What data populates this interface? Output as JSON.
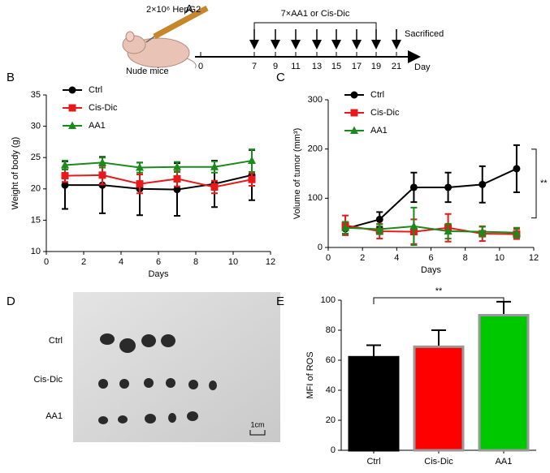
{
  "schematic": {
    "panel_label": "A",
    "cells": "2×10⁶ HepG2",
    "mice": "Nude mice",
    "treatment": "7×AA1 or Cis-Dic",
    "endpoint": "Sacrificed",
    "axis_label": "Day",
    "day_labels": [
      "0",
      "7",
      "9",
      "11",
      "13",
      "15",
      "17",
      "19",
      "21"
    ]
  },
  "photo": {
    "panel_label": "D",
    "rows": [
      "Ctrl",
      "Cis-Dic",
      "AA1"
    ],
    "scale": "1cm"
  },
  "chart_data": [
    {
      "type": "line",
      "panel_label": "B",
      "x_label": "Days",
      "y_label": "Weight of body (g)",
      "legend": "upper left",
      "x": [
        1,
        3,
        5,
        7,
        9,
        11
      ],
      "xlim": [
        0,
        12
      ],
      "xticks": [
        0,
        2,
        4,
        6,
        8,
        10,
        12
      ],
      "ylim": [
        10,
        35
      ],
      "yticks": [
        10,
        15,
        20,
        25,
        30,
        35
      ],
      "series": [
        {
          "name": "Ctrl",
          "color": "#000000",
          "marker": "circle",
          "values": [
            20.6,
            20.6,
            20.0,
            19.9,
            20.8,
            22.2
          ],
          "errors": [
            3.8,
            4.5,
            4.2,
            4.2,
            3.7,
            4.0
          ]
        },
        {
          "name": "Cis-Dic",
          "color": "#e8191b",
          "marker": "square",
          "values": [
            22.1,
            22.2,
            20.8,
            21.6,
            20.3,
            21.5
          ],
          "errors": [
            1.0,
            1.5,
            1.5,
            1.2,
            1.0,
            1.0
          ]
        },
        {
          "name": "AA1",
          "color": "#1a8a1a",
          "marker": "triangle",
          "values": [
            23.8,
            24.2,
            23.4,
            23.5,
            23.5,
            24.5
          ],
          "errors": [
            0.7,
            0.8,
            0.8,
            0.8,
            0.9,
            1.8
          ]
        }
      ]
    },
    {
      "type": "line",
      "panel_label": "C",
      "x_label": "Days",
      "y_label": "Volume of tumor (mm³)",
      "legend": "upper left",
      "annotation": "**",
      "x": [
        1,
        3,
        5,
        7,
        9,
        11
      ],
      "xlim": [
        0,
        12
      ],
      "xticks": [
        0,
        2,
        4,
        6,
        8,
        10,
        12
      ],
      "ylim": [
        0,
        300
      ],
      "yticks": [
        0,
        100,
        200,
        300
      ],
      "series": [
        {
          "name": "Ctrl",
          "color": "#000000",
          "marker": "circle",
          "values": [
            38,
            57,
            122,
            122,
            128,
            160
          ],
          "errors": [
            10,
            15,
            30,
            30,
            37,
            48
          ]
        },
        {
          "name": "Cis-Dic",
          "color": "#e8191b",
          "marker": "square",
          "values": [
            45,
            33,
            32,
            40,
            28,
            27
          ],
          "errors": [
            20,
            15,
            25,
            28,
            15,
            10
          ]
        },
        {
          "name": "AA1",
          "color": "#1a8a1a",
          "marker": "triangle",
          "values": [
            40,
            37,
            43,
            33,
            32,
            30
          ],
          "errors": [
            12,
            10,
            38,
            15,
            10,
            10
          ]
        }
      ]
    },
    {
      "type": "bar",
      "panel_label": "E",
      "y_label": "MFI of ROS",
      "annotation": "**",
      "categories": [
        "Ctrl",
        "Cis-Dic",
        "AA1"
      ],
      "values": [
        62,
        69,
        90
      ],
      "errors": [
        8,
        11,
        9
      ],
      "colors": [
        "#000000",
        "#ff0000",
        "#00c800"
      ],
      "edge_colors": [
        "#000000",
        "#999999",
        "#999999"
      ],
      "ylim": [
        0,
        100
      ],
      "yticks": [
        0,
        20,
        40,
        60,
        80,
        100
      ]
    }
  ]
}
